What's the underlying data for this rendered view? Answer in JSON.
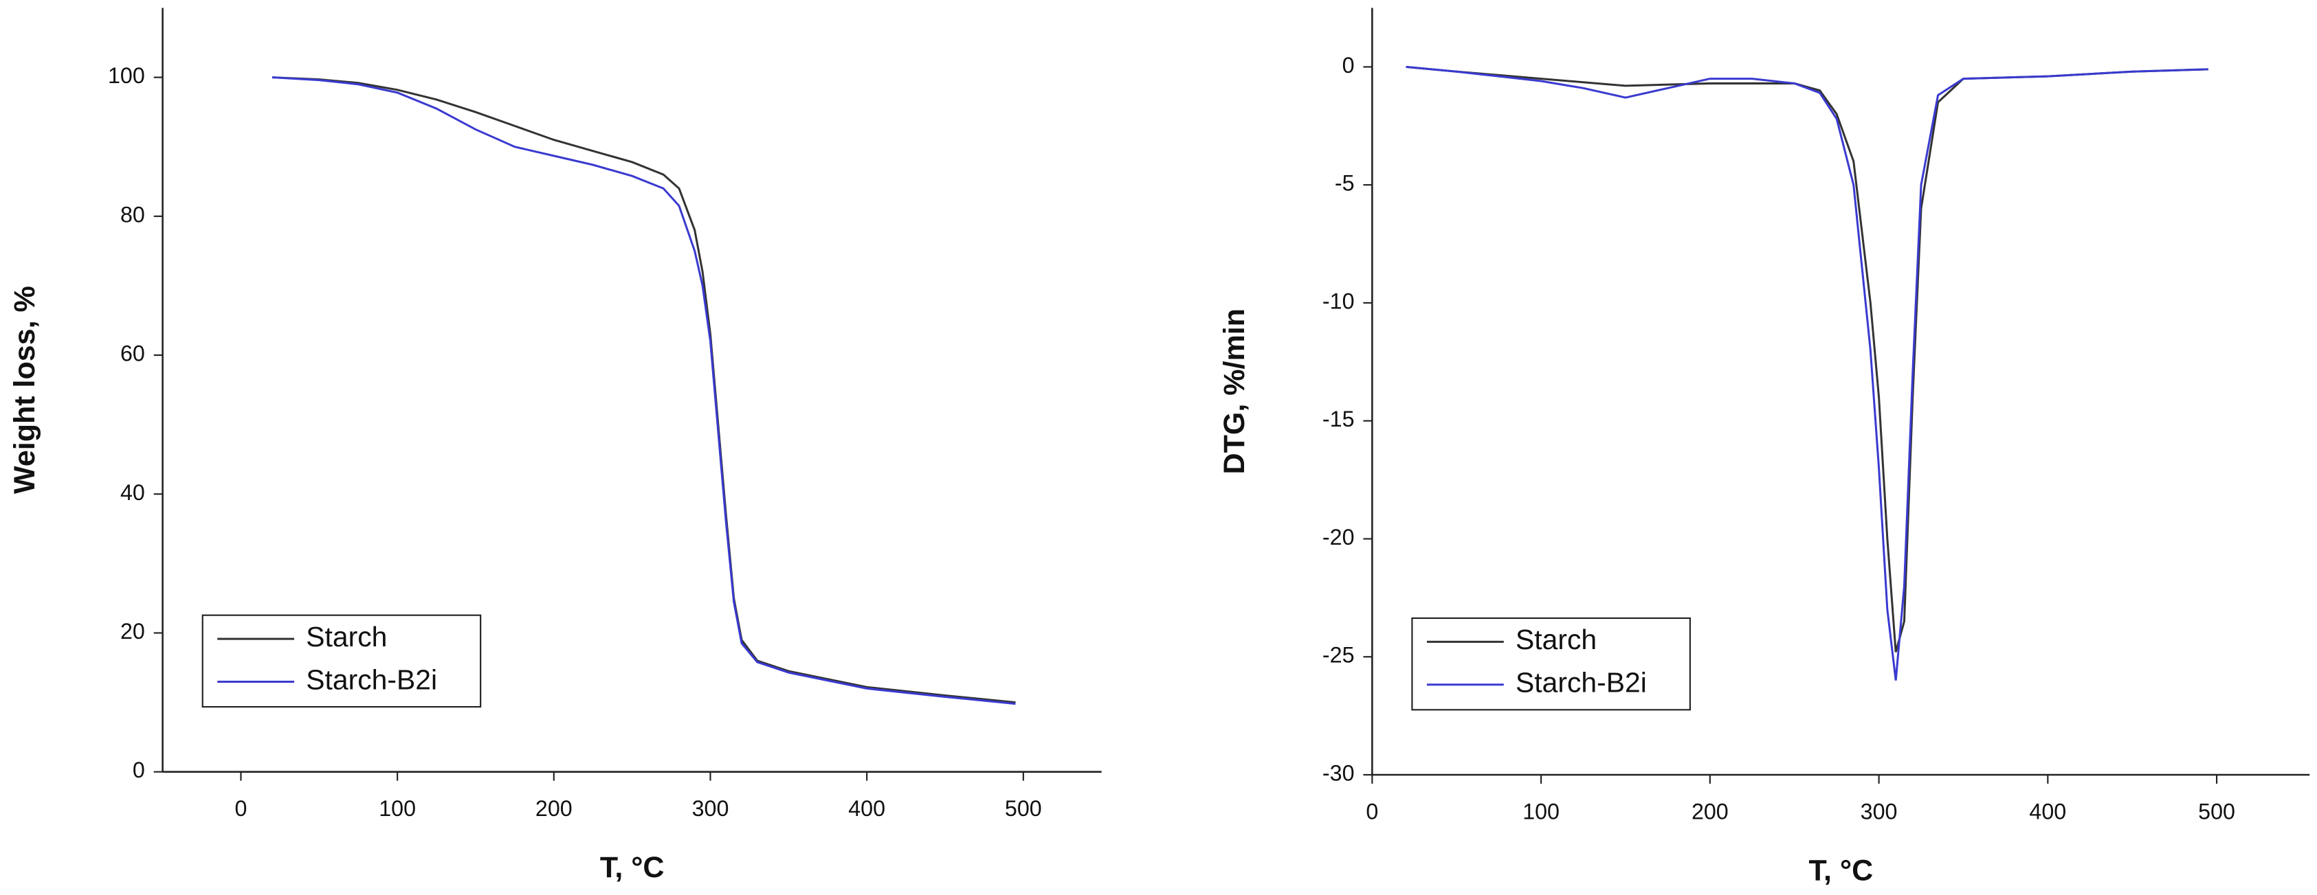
{
  "chart_data": [
    {
      "type": "line",
      "x_label": "T, °C",
      "y_label": "Weight loss, %",
      "x": [
        20,
        50,
        75,
        100,
        125,
        150,
        175,
        200,
        225,
        250,
        270,
        280,
        290,
        295,
        300,
        305,
        310,
        315,
        320,
        330,
        350,
        400,
        450,
        495
      ],
      "series": [
        {
          "name": "Starch",
          "color": "#333333",
          "values": [
            100,
            99.7,
            99.2,
            98.2,
            96.8,
            95,
            93,
            91,
            89.4,
            87.8,
            86,
            84,
            78,
            72,
            63,
            50,
            37,
            25,
            19,
            16,
            14.5,
            12.2,
            11,
            10
          ]
        },
        {
          "name": "Starch-B2i",
          "color": "#3a3ad0",
          "values": [
            100,
            99.6,
            99,
            97.8,
            95.5,
            92.5,
            90,
            88.7,
            87.4,
            85.8,
            84,
            81.5,
            75,
            70,
            62,
            49,
            36,
            24.5,
            18.5,
            15.8,
            14.3,
            12,
            10.8,
            9.8
          ]
        }
      ],
      "xlim": [
        -50,
        550
      ],
      "xticks": [
        0,
        100,
        200,
        300,
        400,
        500
      ],
      "ylim": [
        0,
        110
      ],
      "yticks": [
        0,
        20,
        40,
        60,
        80,
        100
      ],
      "grid": false,
      "legend": "lower left"
    },
    {
      "type": "line",
      "x_label": "T, °C",
      "y_label": "DTG, %/min",
      "x": [
        20,
        50,
        75,
        100,
        125,
        150,
        175,
        200,
        225,
        250,
        265,
        275,
        285,
        295,
        300,
        305,
        310,
        315,
        320,
        325,
        335,
        350,
        400,
        450,
        495
      ],
      "series": [
        {
          "name": "Starch",
          "color": "#333333",
          "values": [
            0,
            -0.2,
            -0.35,
            -0.5,
            -0.65,
            -0.8,
            -0.75,
            -0.7,
            -0.7,
            -0.7,
            -1,
            -2,
            -4,
            -10,
            -14,
            -20,
            -24.8,
            -23.5,
            -14,
            -6,
            -1.5,
            -0.5,
            -0.4,
            -0.2,
            -0.1
          ]
        },
        {
          "name": "Starch-B2i",
          "color": "#3a3ad0",
          "values": [
            0,
            -0.2,
            -0.4,
            -0.6,
            -0.9,
            -1.3,
            -0.9,
            -0.5,
            -0.5,
            -0.7,
            -1.1,
            -2.2,
            -5,
            -12,
            -17,
            -23,
            -26,
            -22,
            -13,
            -5,
            -1.2,
            -0.5,
            -0.4,
            -0.2,
            -0.1
          ]
        }
      ],
      "xlim": [
        0,
        555
      ],
      "xticks": [
        0,
        100,
        200,
        300,
        400,
        500
      ],
      "ylim": [
        -30,
        2.5
      ],
      "yticks": [
        -30,
        -25,
        -20,
        -15,
        -10,
        -5,
        0
      ],
      "grid": false,
      "legend": "lower left"
    }
  ]
}
